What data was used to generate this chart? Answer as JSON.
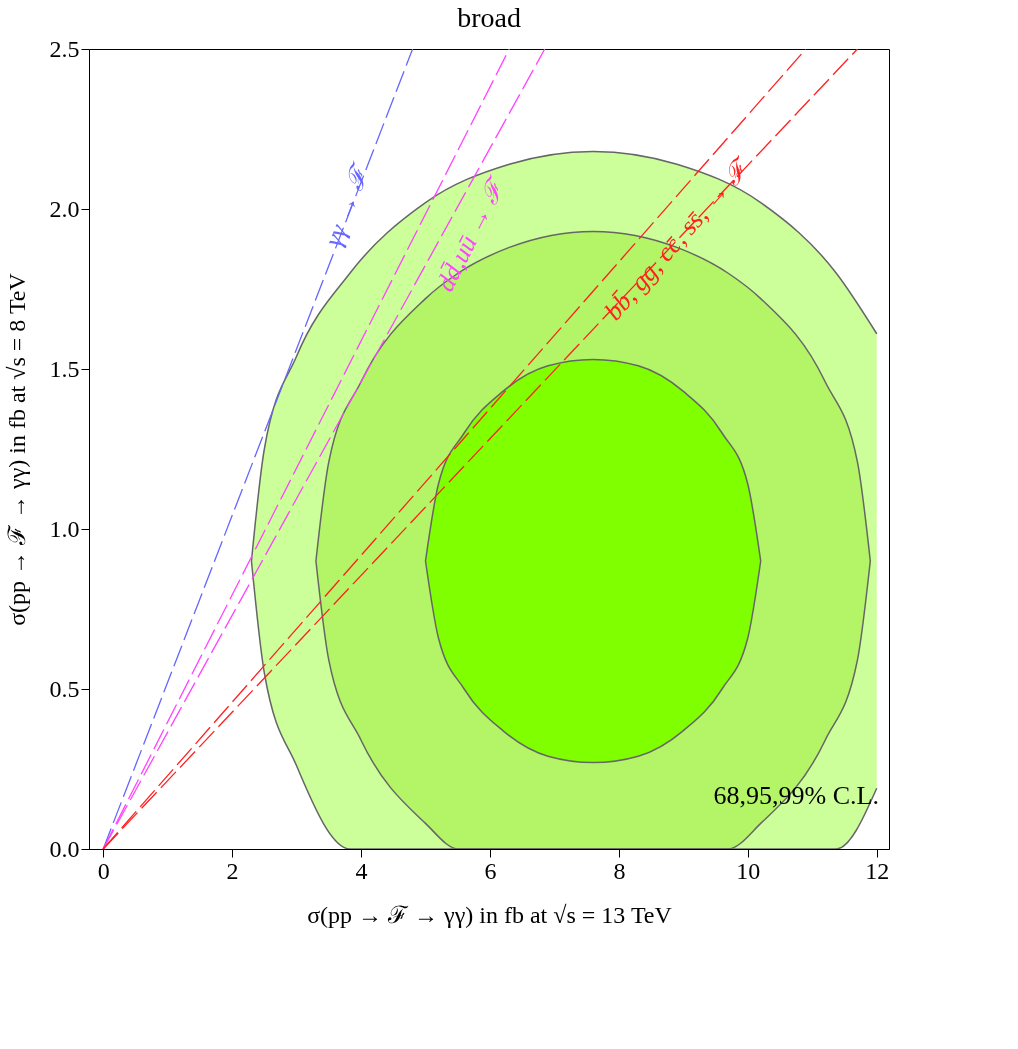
{
  "chart_data": {
    "type": "line",
    "title": "broad",
    "xlabel": "σ(pp → ℱ → γγ) in fb at √s = 13 TeV",
    "ylabel": "σ(pp → ℱ → γγ) in fb at √s = 8 TeV",
    "xlim": [
      -0.22,
      12.19
    ],
    "ylim": [
      0,
      2.5
    ],
    "xticks": [
      0,
      2,
      4,
      6,
      8,
      10,
      12
    ],
    "yticks": [
      {
        "value": 0,
        "label": "0.0"
      },
      {
        "value": 0.5,
        "label": "0.5"
      },
      {
        "value": 1,
        "label": "1.0"
      },
      {
        "value": 1.5,
        "label": "1.5"
      },
      {
        "value": 2,
        "label": "2.0"
      },
      {
        "value": 2.5,
        "label": "2.5"
      }
    ],
    "grid": false,
    "line_style": "dashed",
    "marker": "none",
    "series": [
      {
        "type": "area",
        "color": "#ccff99",
        "x": [
          2.3,
          2.5,
          3.0,
          3.83,
          5.0,
          6.3,
          7.6,
          8.9,
          10.2,
          11.37,
          12.0
        ],
        "values": [
          0.9,
          1.25,
          1.54,
          1.8,
          2.02,
          2.14,
          2.18,
          2.14,
          2.02,
          1.8,
          1.61
        ]
      },
      {
        "type": "area",
        "color": "#b3f566",
        "x": [
          3.3,
          3.5,
          4.0,
          5.0,
          5.51,
          6.3,
          7.6,
          8.9,
          9.69,
          10.2,
          11.2,
          11.7,
          11.9
        ],
        "values": [
          0.9,
          1.21,
          1.46,
          1.72,
          1.8,
          1.88,
          1.93,
          1.88,
          1.8,
          1.72,
          1.46,
          1.21,
          0.9
        ]
      },
      {
        "type": "area",
        "color": "#80ff00",
        "x": [
          5.0,
          5.2,
          5.6,
          6.2,
          6.9,
          7.6,
          8.3,
          9.0,
          9.6,
          10.0,
          10.2
        ],
        "values": [
          0.9,
          1.14,
          1.3,
          1.43,
          1.51,
          1.53,
          1.51,
          1.43,
          1.3,
          1.14,
          0.9
        ]
      },
      {
        "color": "#666666",
        "line_style": "solid",
        "x": [
          2.3,
          2.5,
          3.0,
          3.83,
          5.0,
          6.3,
          7.6,
          8.9,
          10.2,
          11.37,
          12.0
        ],
        "values": [
          0.9,
          0.55,
          0.26,
          0,
          0,
          0,
          0,
          0,
          0,
          0,
          0.19
        ]
      },
      {
        "color": "#666666",
        "line_style": "solid",
        "x": [
          3.3,
          3.5,
          4.0,
          5.0,
          5.51,
          6.3,
          7.6,
          8.9,
          9.69,
          10.2,
          11.2,
          11.7,
          11.9
        ],
        "values": [
          0.9,
          0.59,
          0.34,
          0.08,
          0,
          0,
          0,
          0,
          0,
          0.08,
          0.34,
          0.59,
          0.9
        ]
      },
      {
        "color": "#666666",
        "line_style": "solid",
        "x": [
          5.0,
          5.2,
          5.6,
          6.2,
          6.9,
          7.6,
          8.3,
          9.0,
          9.6,
          10.0,
          10.2
        ],
        "values": [
          0.9,
          0.66,
          0.5,
          0.37,
          0.29,
          0.27,
          0.29,
          0.37,
          0.5,
          0.66,
          0.9
        ]
      },
      {
        "color": "#6666ff",
        "x": [
          0,
          4.8
        ],
        "values": [
          0,
          2.5
        ]
      },
      {
        "color": "#ff44ff",
        "x": [
          0,
          6.3
        ],
        "values": [
          0,
          2.5
        ]
      },
      {
        "color": "#ff44ff",
        "x": [
          0,
          6.85
        ],
        "values": [
          0,
          2.5
        ]
      },
      {
        "color": "#ff2020",
        "x": [
          0,
          10.9
        ],
        "values": [
          0,
          2.5
        ]
      },
      {
        "color": "#ff2020",
        "x": [
          0,
          11.7
        ],
        "values": [
          0,
          2.5
        ]
      }
    ],
    "annotations": [
      {
        "text": "γγ → ℱ",
        "x": 3.84,
        "y": 2.0
      },
      {
        "text": "dd̄,uū → ℱ",
        "x": 5.34,
        "y": 1.95
      },
      {
        "text": "bb̄, gg, cc̄, ss̄, → ℱ",
        "x": 8.89,
        "y": 1.9
      },
      "68,95,99% C.L."
    ]
  }
}
